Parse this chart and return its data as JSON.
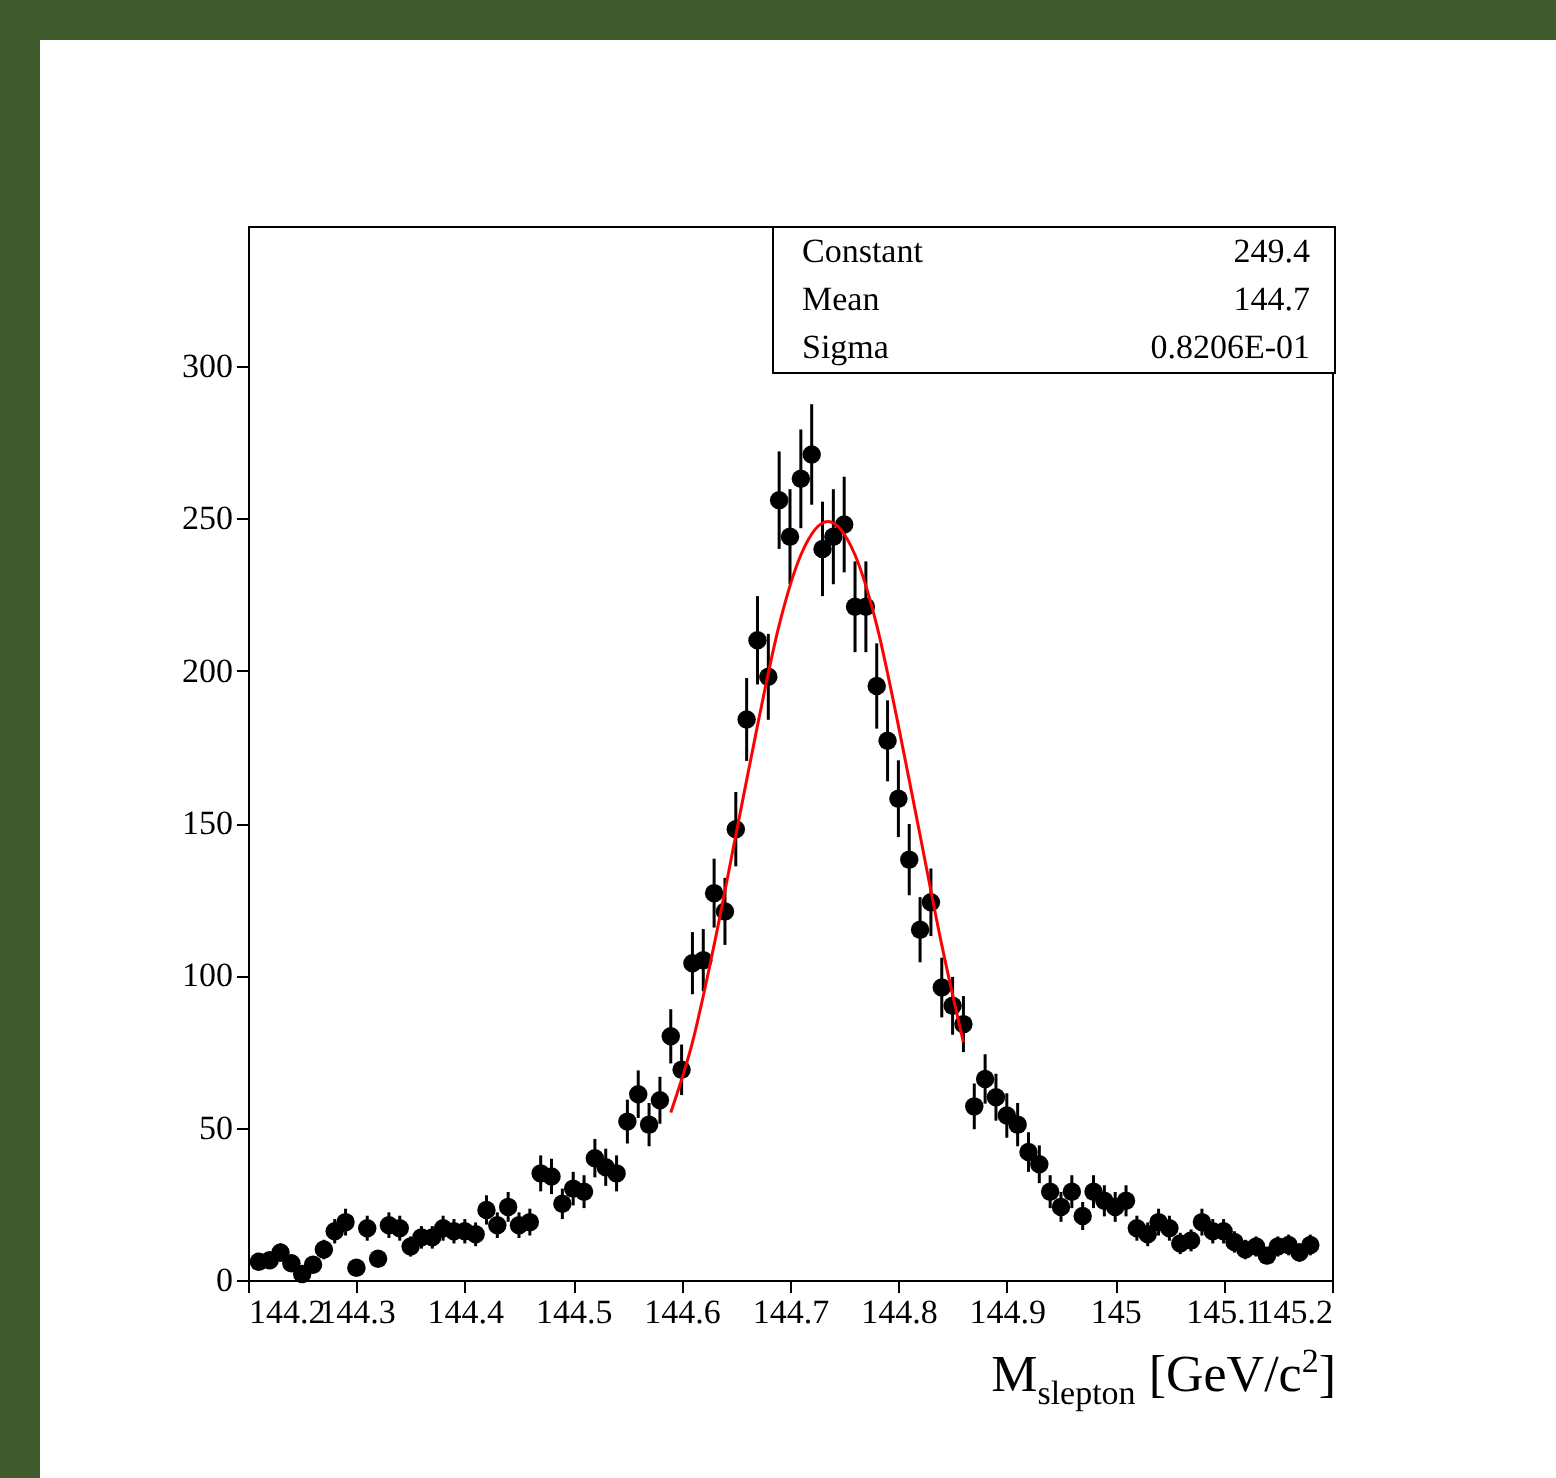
{
  "chart_data": {
    "type": "scatter",
    "xlabel": "M$_{slepton}$ [GeV/c$^{2}$]",
    "xlim": [
      144.2,
      145.2
    ],
    "ylim": [
      0,
      346
    ],
    "xticks": [
      144.2,
      144.3,
      144.4,
      144.5,
      144.6,
      144.7,
      144.8,
      144.9,
      145,
      145.1,
      145.2
    ],
    "yticks": [
      0,
      50,
      100,
      150,
      200,
      250,
      300
    ],
    "grid": false,
    "marker": "circle",
    "annotations": [
      "Constant 249.4",
      "Mean 144.7",
      "Sigma 0.8206E-01"
    ],
    "series": [
      {
        "color": "#000000",
        "x": [
          144.21,
          144.22,
          144.23,
          144.24,
          144.25,
          144.26,
          144.27,
          144.28,
          144.29,
          144.3,
          144.31,
          144.32,
          144.33,
          144.34,
          144.35,
          144.36,
          144.37,
          144.38,
          144.39,
          144.4,
          144.41,
          144.42,
          144.43,
          144.44,
          144.45,
          144.46,
          144.47,
          144.48,
          144.49,
          144.5,
          144.51,
          144.52,
          144.53,
          144.54,
          144.55,
          144.56,
          144.57,
          144.58,
          144.59,
          144.6,
          144.61,
          144.62,
          144.63,
          144.64,
          144.65,
          144.66,
          144.67,
          144.68,
          144.69,
          144.7,
          144.71,
          144.72,
          144.73,
          144.74,
          144.75,
          144.76,
          144.77,
          144.78,
          144.79,
          144.8,
          144.81,
          144.82,
          144.83,
          144.84,
          144.85,
          144.86,
          144.87,
          144.88,
          144.89,
          144.9,
          144.91,
          144.92,
          144.93,
          144.94,
          144.95,
          144.96,
          144.97,
          144.98,
          144.99,
          145,
          145.01,
          145.02,
          145.03,
          145.04,
          145.05,
          145.06,
          145.07,
          145.08,
          145.09,
          145.1,
          145.11,
          145.12,
          145.13,
          145.14,
          145.15,
          145.16,
          145.17,
          145.18
        ],
        "values": [
          6,
          6.5,
          9,
          5.5,
          2,
          5,
          10,
          16,
          19,
          4,
          17,
          7,
          18,
          17,
          11,
          14,
          14,
          17,
          16,
          16,
          15,
          23,
          18,
          24,
          18,
          19,
          35,
          34,
          25,
          30,
          29,
          40,
          37,
          35,
          52,
          61,
          51,
          59,
          80,
          69,
          104,
          105,
          127,
          121,
          148,
          184,
          210,
          198,
          256,
          244,
          263,
          271,
          240,
          244,
          248,
          221,
          221,
          195,
          177,
          158,
          138,
          115,
          124,
          96,
          90,
          84,
          57,
          66,
          60,
          54,
          51,
          42,
          38,
          29,
          24,
          29,
          21,
          29,
          26,
          24,
          26,
          17,
          15,
          19,
          17,
          12,
          13,
          19,
          16,
          16,
          12.5,
          10,
          11,
          8,
          11,
          11.5,
          9,
          11.5
        ],
        "errors": [
          2.4,
          2.5,
          3,
          2.3,
          1.4,
          2.2,
          3.2,
          4,
          4.4,
          2,
          4.1,
          2.6,
          4.2,
          4.1,
          3.3,
          3.7,
          3.7,
          4.1,
          4,
          4,
          3.9,
          4.8,
          4.2,
          4.9,
          4.2,
          4.4,
          5.9,
          5.8,
          5,
          5.5,
          5.4,
          6.3,
          6.1,
          5.9,
          7.2,
          7.8,
          7.1,
          7.7,
          8.9,
          8.3,
          10.2,
          10.2,
          11.3,
          11,
          12.2,
          13.6,
          14.5,
          14.1,
          16,
          15.6,
          16.2,
          16.5,
          15.5,
          15.6,
          15.7,
          14.9,
          14.9,
          14,
          13.3,
          12.6,
          11.7,
          10.7,
          11.1,
          9.8,
          9.5,
          9.2,
          7.5,
          8.1,
          7.7,
          7.3,
          7.1,
          6.5,
          6.2,
          5.4,
          4.9,
          5.4,
          4.6,
          5.4,
          5.1,
          4.9,
          5.1,
          4.1,
          3.9,
          4.4,
          4.1,
          3.5,
          3.6,
          4.4,
          4,
          4,
          3.5,
          3.2,
          3.3,
          2.8,
          3.3,
          3.4,
          3,
          3.4
        ]
      },
      {
        "type": "line",
        "marker": "none",
        "color": "#ff0000",
        "x": [
          144.59,
          144.61,
          144.63,
          144.65,
          144.67,
          144.69,
          144.71,
          144.735,
          144.76,
          144.78,
          144.8,
          144.82,
          144.84,
          144.86
        ],
        "values": [
          55,
          78,
          110,
          146,
          182,
          215,
          238,
          249,
          238,
          215,
          182,
          146,
          110,
          78
        ]
      }
    ]
  }
}
